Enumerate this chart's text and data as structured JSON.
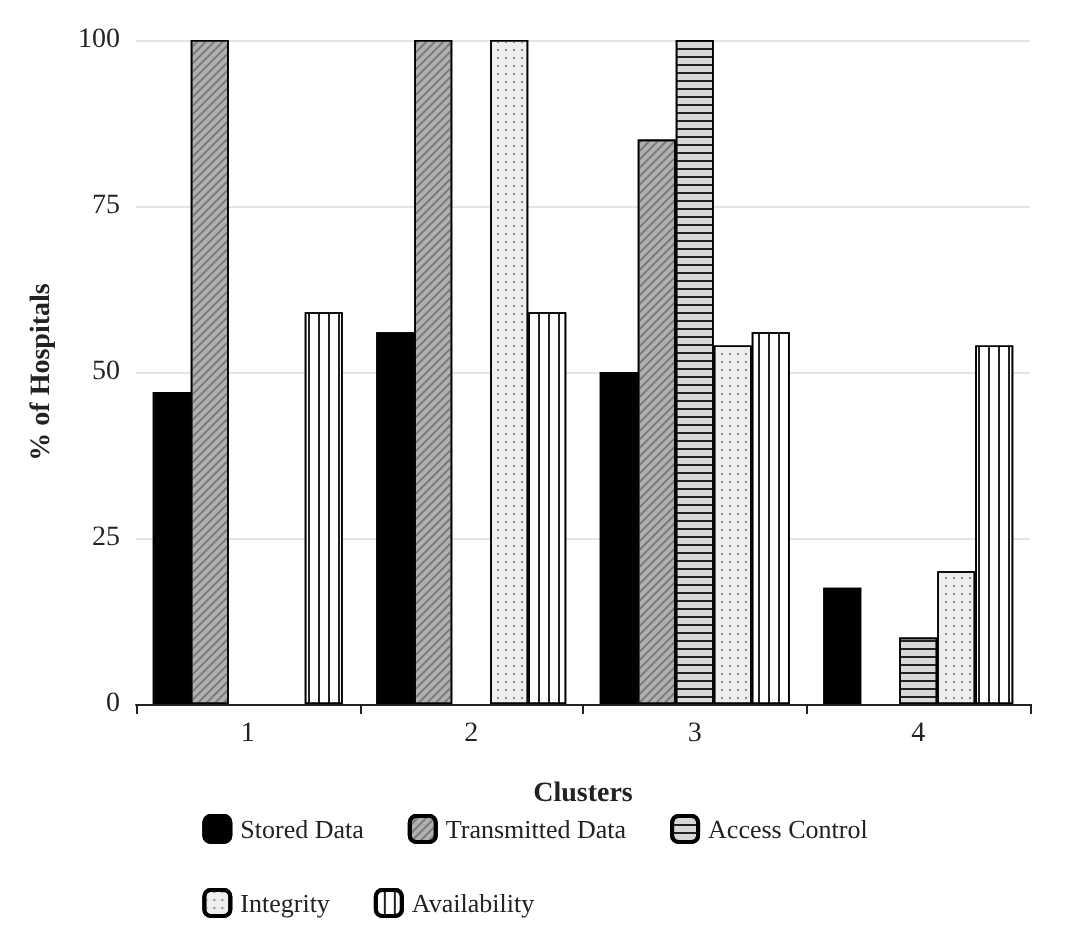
{
  "chart_data": {
    "type": "bar",
    "xlabel": "Clusters",
    "ylabel": "% of Hospitals",
    "categories": [
      "1",
      "2",
      "3",
      "4"
    ],
    "series": [
      {
        "name": "Stored Data",
        "color": "#000000",
        "values": [
          47,
          56,
          50,
          17.5
        ]
      },
      {
        "name": "Transmitted Data",
        "color": "#b0b0b0",
        "values": [
          100,
          100,
          85,
          null
        ]
      },
      {
        "name": "Access Control",
        "color": "#d8d8d8",
        "values": [
          null,
          null,
          100,
          10
        ]
      },
      {
        "name": "Integrity",
        "color": "#eeeeee",
        "values": [
          null,
          100,
          54,
          20
        ]
      },
      {
        "name": "Availability",
        "color": "#ffffff",
        "values": [
          59,
          59,
          56,
          54
        ]
      }
    ],
    "ylim": [
      0,
      100
    ],
    "yticks": [
      0,
      25,
      50,
      75,
      100
    ],
    "grid": "y",
    "legend": "bottom"
  }
}
